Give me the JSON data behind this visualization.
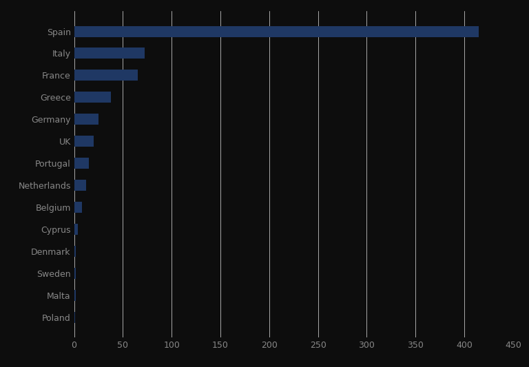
{
  "categories": [
    "Spain",
    "Italy",
    "France",
    "Greece",
    "Germany",
    "UK",
    "Portugal",
    "Netherlands",
    "Belgium",
    "Cyprus",
    "Denmark",
    "Sweden",
    "Malta",
    "Poland"
  ],
  "values": [
    415,
    72,
    65,
    38,
    25,
    20,
    15,
    12,
    8,
    4,
    1.5,
    1.5,
    1.5,
    1.0
  ],
  "bar_color": "#1f3864",
  "background_color": "#0d0d0d",
  "text_color": "#888888",
  "grid_color": "#ffffff",
  "xlim": [
    0,
    450
  ],
  "xticks": [
    0,
    50,
    100,
    150,
    200,
    250,
    300,
    350,
    400,
    450
  ],
  "tick_fontsize": 9,
  "label_fontsize": 9,
  "bar_height": 0.5
}
